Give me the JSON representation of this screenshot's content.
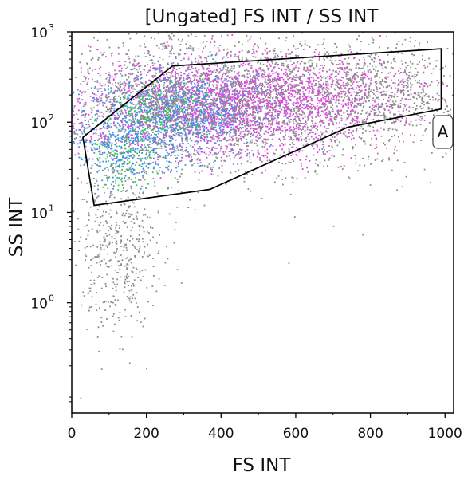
{
  "chart_data": {
    "type": "scatter",
    "title": "[Ungated] FS INT / SS INT",
    "xlabel": "FS INT",
    "ylabel": "SS INT",
    "x_scale": "linear",
    "y_scale": "log",
    "xlim": [
      0,
      1023
    ],
    "ylim": [
      0.06,
      1000
    ],
    "x_ticks": [
      {
        "value": 0,
        "label": "0"
      },
      {
        "value": 200,
        "label": "200"
      },
      {
        "value": 400,
        "label": "400"
      },
      {
        "value": 600,
        "label": "600"
      },
      {
        "value": 800,
        "label": "800"
      },
      {
        "value": 1000,
        "label": "1000"
      }
    ],
    "y_ticks": [
      {
        "value": 1,
        "base": "10",
        "exp": "0"
      },
      {
        "value": 10,
        "base": "10",
        "exp": "1"
      },
      {
        "value": 100,
        "base": "10",
        "exp": "2"
      },
      {
        "value": 1000,
        "base": "10",
        "exp": "3"
      }
    ],
    "gate": {
      "label": "A",
      "vertices": [
        [
          30,
          68
        ],
        [
          270,
          420
        ],
        [
          990,
          650
        ],
        [
          990,
          140
        ],
        [
          740,
          88
        ],
        [
          370,
          18
        ],
        [
          60,
          12
        ]
      ]
    },
    "density_colors": {
      "low": "#8c8c8c",
      "magenta": "#e23fe6",
      "purple": "#9b5de5",
      "blue": "#3f8fe8",
      "green": "#28d13c"
    },
    "density_clusters": [
      {
        "cx": 380,
        "cy": 150,
        "sx": 180,
        "sy": 0.28,
        "color": "magenta",
        "n": 2200
      },
      {
        "cx": 300,
        "cy": 130,
        "sx": 110,
        "sy": 0.22,
        "color": "blue",
        "n": 900
      },
      {
        "cx": 230,
        "cy": 140,
        "sx": 60,
        "sy": 0.16,
        "color": "green",
        "n": 260
      },
      {
        "cx": 150,
        "cy": 45,
        "sx": 50,
        "sy": 0.18,
        "color": "green",
        "n": 120
      },
      {
        "cx": 150,
        "cy": 60,
        "sx": 80,
        "sy": 0.25,
        "color": "blue",
        "n": 500
      },
      {
        "cx": 650,
        "cy": 200,
        "sx": 150,
        "sy": 0.2,
        "color": "magenta",
        "n": 600
      },
      {
        "cx": 430,
        "cy": 170,
        "sx": 250,
        "sy": 0.4,
        "color": "low",
        "n": 2600
      },
      {
        "cx": 120,
        "cy": 5,
        "sx": 60,
        "sy": 0.5,
        "color": "low",
        "n": 500
      },
      {
        "cx": 850,
        "cy": 200,
        "sx": 100,
        "sy": 0.25,
        "color": "low",
        "n": 500
      }
    ]
  }
}
